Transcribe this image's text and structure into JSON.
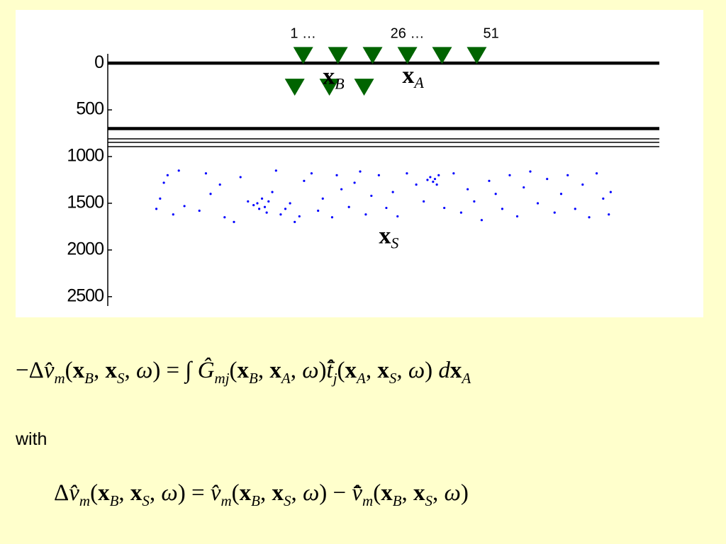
{
  "chart_data": {
    "type": "scatter",
    "ylim": [
      -100,
      2600
    ],
    "xlim": [
      0,
      5900
    ],
    "yticks": [
      0,
      500,
      1000,
      1500,
      2000,
      2500
    ],
    "interfaces": [
      {
        "depth": 0,
        "thick": true
      },
      {
        "depth": 700,
        "thick": true
      },
      {
        "depth": 810,
        "thick": false
      },
      {
        "depth": 848,
        "thick": false
      },
      {
        "depth": 894,
        "thick": false
      }
    ],
    "receivers": {
      "color": "#006400",
      "top": {
        "x": [
          2091,
          2462,
          2833,
          3205,
          3576,
          3947
        ],
        "depth": -90
      },
      "bottom": {
        "x": [
          2000,
          2371,
          2742
        ],
        "depth": 250
      }
    },
    "receiver_labels": [
      {
        "text": "1 …",
        "x": 2091
      },
      {
        "text": "26  …",
        "x": 3205
      },
      {
        "text": "51",
        "x": 4100
      }
    ],
    "point_labels": [
      {
        "main": "x",
        "sub": "B",
        "x": 2300,
        "depth": 160
      },
      {
        "main": "x",
        "sub": "A",
        "x": 3150,
        "depth": 150
      },
      {
        "main": "x",
        "sub": "S",
        "x": 2900,
        "depth": 1870
      }
    ],
    "sources": {
      "color": "#0000ff",
      "x": [
        520,
        560,
        600,
        640,
        700,
        760,
        820,
        980,
        1050,
        1100,
        1200,
        1250,
        1350,
        1420,
        1500,
        1560,
        1600,
        1620,
        1650,
        1680,
        1700,
        1720,
        1760,
        1800,
        1850,
        1900,
        1950,
        2000,
        2050,
        2100,
        2180,
        2250,
        2300,
        2400,
        2450,
        2500,
        2580,
        2640,
        2700,
        2760,
        2820,
        2900,
        2980,
        3050,
        3100,
        3200,
        3300,
        3380,
        3420,
        3450,
        3480,
        3500,
        3520,
        3540,
        3600,
        3700,
        3780,
        3850,
        3920,
        4000,
        4080,
        4150,
        4220,
        4300,
        4380,
        4450,
        4520,
        4600,
        4700,
        4780,
        4850,
        4920,
        5000,
        5080,
        5150,
        5230,
        5300,
        5360,
        5380
      ],
      "y": [
        1560,
        1450,
        1280,
        1200,
        1620,
        1150,
        1530,
        1580,
        1180,
        1400,
        1300,
        1650,
        1700,
        1220,
        1480,
        1520,
        1500,
        1560,
        1450,
        1540,
        1600,
        1480,
        1380,
        1150,
        1620,
        1560,
        1500,
        1700,
        1640,
        1260,
        1180,
        1580,
        1450,
        1650,
        1200,
        1350,
        1540,
        1280,
        1160,
        1620,
        1420,
        1200,
        1550,
        1380,
        1640,
        1180,
        1300,
        1480,
        1250,
        1220,
        1270,
        1240,
        1300,
        1200,
        1550,
        1180,
        1600,
        1350,
        1480,
        1680,
        1260,
        1400,
        1560,
        1200,
        1640,
        1330,
        1160,
        1500,
        1240,
        1600,
        1400,
        1200,
        1560,
        1300,
        1650,
        1180,
        1450,
        1620,
        1380
      ]
    }
  },
  "equations": [
    [
      {
        "text": "−Δ",
        "style": "roman"
      },
      {
        "text": "v̂",
        "style": "italic"
      },
      {
        "text": "m",
        "style": "sub"
      },
      {
        "text": "(",
        "style": "roman"
      },
      {
        "text": "x",
        "style": "bold"
      },
      {
        "text": "B",
        "style": "sub"
      },
      {
        "text": ", ",
        "style": "roman"
      },
      {
        "text": "x",
        "style": "bold"
      },
      {
        "text": "S",
        "style": "sub"
      },
      {
        "text": ", ",
        "style": "roman"
      },
      {
        "text": "ω",
        "style": "italic"
      },
      {
        "text": ") = ∫ ",
        "style": "roman"
      },
      {
        "text": "Ĝ",
        "style": "italic"
      },
      {
        "text": "mj",
        "style": "sub"
      },
      {
        "text": "(",
        "style": "roman"
      },
      {
        "text": "x",
        "style": "bold"
      },
      {
        "text": "B",
        "style": "sub"
      },
      {
        "text": ", ",
        "style": "roman"
      },
      {
        "text": "x",
        "style": "bold"
      },
      {
        "text": "A",
        "style": "sub"
      },
      {
        "text": ", ",
        "style": "roman"
      },
      {
        "text": "ω",
        "style": "italic"
      },
      {
        "text": ")",
        "style": "roman"
      },
      {
        "text": "t̂̄",
        "style": "italic"
      },
      {
        "text": "j",
        "style": "sub"
      },
      {
        "text": "(",
        "style": "roman"
      },
      {
        "text": "x",
        "style": "bold"
      },
      {
        "text": "A",
        "style": "sub"
      },
      {
        "text": ", ",
        "style": "roman"
      },
      {
        "text": "x",
        "style": "bold"
      },
      {
        "text": "S",
        "style": "sub"
      },
      {
        "text": ", ",
        "style": "roman"
      },
      {
        "text": "ω",
        "style": "italic"
      },
      {
        "text": ")  ",
        "style": "roman"
      },
      {
        "text": "d",
        "style": "italic"
      },
      {
        "text": "x",
        "style": "bold"
      },
      {
        "text": "A",
        "style": "sub"
      }
    ],
    [
      {
        "text": "Δ",
        "style": "roman"
      },
      {
        "text": "v̂",
        "style": "italic"
      },
      {
        "text": "m",
        "style": "sub"
      },
      {
        "text": "(",
        "style": "roman"
      },
      {
        "text": "x",
        "style": "bold"
      },
      {
        "text": "B",
        "style": "sub"
      },
      {
        "text": ", ",
        "style": "roman"
      },
      {
        "text": "x",
        "style": "bold"
      },
      {
        "text": "S",
        "style": "sub"
      },
      {
        "text": ", ",
        "style": "roman"
      },
      {
        "text": "ω",
        "style": "italic"
      },
      {
        "text": ") = ",
        "style": "roman"
      },
      {
        "text": "v̂",
        "style": "italic"
      },
      {
        "text": "m",
        "style": "sub"
      },
      {
        "text": "(",
        "style": "roman"
      },
      {
        "text": "x",
        "style": "bold"
      },
      {
        "text": "B",
        "style": "sub"
      },
      {
        "text": ", ",
        "style": "roman"
      },
      {
        "text": "x",
        "style": "bold"
      },
      {
        "text": "S",
        "style": "sub"
      },
      {
        "text": ", ",
        "style": "roman"
      },
      {
        "text": "ω",
        "style": "italic"
      },
      {
        "text": ") − ",
        "style": "roman"
      },
      {
        "text": "v̂̄",
        "style": "italic"
      },
      {
        "text": "m",
        "style": "sub"
      },
      {
        "text": "(",
        "style": "roman"
      },
      {
        "text": "x",
        "style": "bold"
      },
      {
        "text": "B",
        "style": "sub"
      },
      {
        "text": ", ",
        "style": "roman"
      },
      {
        "text": "x",
        "style": "bold"
      },
      {
        "text": "S",
        "style": "sub"
      },
      {
        "text": ", ",
        "style": "roman"
      },
      {
        "text": "ω",
        "style": "italic"
      },
      {
        "text": ")",
        "style": "roman"
      }
    ]
  ],
  "with_text": "with"
}
